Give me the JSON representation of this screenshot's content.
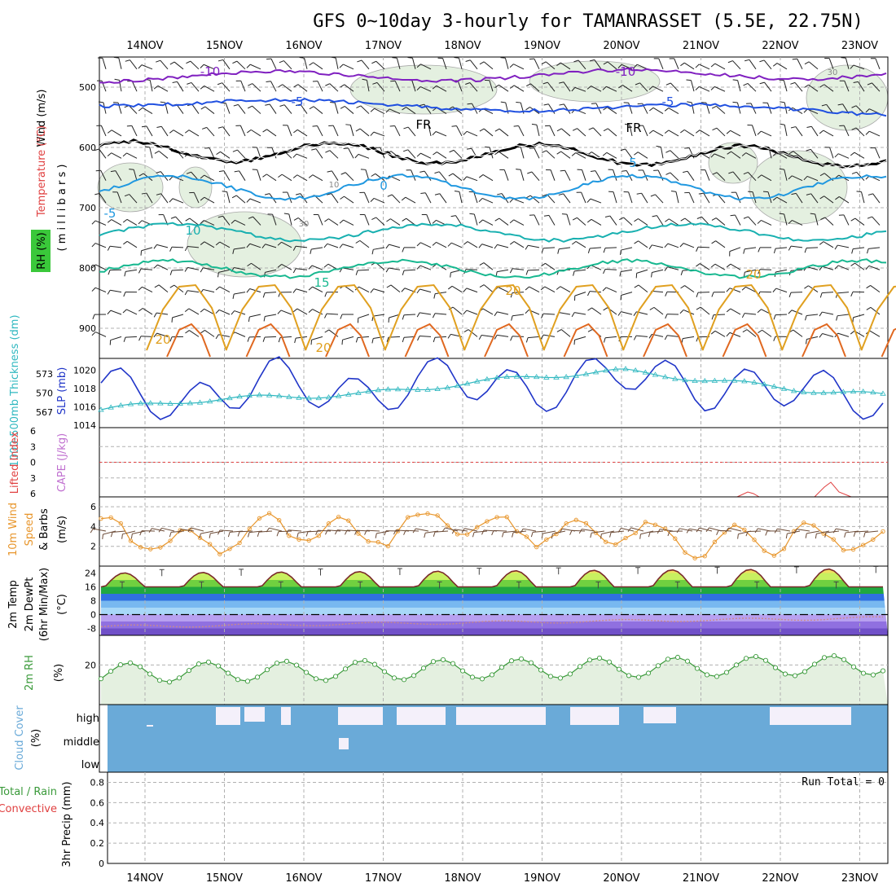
{
  "title": "GFS 0~10day 3-hourly for TAMANRASSET (5.5E, 22.75N)",
  "dates": [
    "14NOV",
    "15NOV",
    "16NOV",
    "17NOV",
    "18NOV",
    "19NOV",
    "20NOV",
    "21NOV",
    "22NOV",
    "23NOV"
  ],
  "panels": {
    "upper": {
      "ylabel": "(millibars)",
      "ylabel_spaced": "( m i l l i b a r s )",
      "ticks": [
        "500",
        "600",
        "700",
        "800",
        "900"
      ],
      "legend_wind": "Wind (m/s)",
      "legend_temp": "Temperature (°C)",
      "legend_rh": "RH (%)",
      "isotherm_labels": [
        "-10",
        "-10",
        "-5",
        "-5",
        "FR",
        "FR",
        "0",
        "5",
        "-5",
        "10",
        "15",
        "20",
        "20",
        "20",
        "20",
        "10",
        "30",
        "30"
      ]
    },
    "slp": {
      "label_left": "1000-500mb Thickness (dm)",
      "label_right": "SLP (mb)",
      "ticks_thk": [
        "573",
        "570",
        "567"
      ],
      "ticks_slp": [
        "1020",
        "1018",
        "1016",
        "1014"
      ]
    },
    "cape": {
      "label_left": "Lifted Index",
      "label_right": "CAPE (J/kg)",
      "ticks": [
        "6",
        "3",
        "0",
        "3",
        "6"
      ]
    },
    "wind10": {
      "label_a": "10m Wind",
      "label_b": "Speed",
      "label_c": "& Barbs",
      "unit": "(m/s)",
      "ticks": [
        "6",
        "4",
        "2"
      ]
    },
    "temp2m": {
      "label_a": "2m Temp",
      "label_b": "2m DewPt",
      "label_c": "(6hr Min/Max)",
      "unit": "(°C)",
      "ticks": [
        "24",
        "16",
        "8",
        "0",
        "-8"
      ]
    },
    "rh2m": {
      "label": "2m RH",
      "unit": "(%)",
      "ticks": [
        "20"
      ]
    },
    "cloud": {
      "label": "Cloud Cover",
      "unit": "(%)",
      "levels": [
        "high",
        "middle",
        "low"
      ]
    },
    "precip": {
      "label_a": "Total / Rain",
      "label_b": "Convective",
      "label_c": "3hr Precip (mm)",
      "ticks": [
        "0.8",
        "0.6",
        "0.4",
        "0.2",
        "0"
      ],
      "run_total": "Run Total = 0"
    }
  },
  "colors": {
    "slp": "#2035c8",
    "thickness": "#30b8c0",
    "wind_speed": "#e8962c",
    "barb": "#6b4a36",
    "rh_fill": "#e4f0e0",
    "rh_line": "#3a9a3a",
    "cloud": "#6aaad8",
    "temp_line": "#7a2a2a",
    "dewpt": "#c98a8a",
    "grid": "#b0b0b0"
  },
  "chart_data": [
    {
      "type": "line",
      "title": "SLP (mb)",
      "x": [
        "14NOV",
        "15NOV",
        "16NOV",
        "17NOV",
        "18NOV",
        "19NOV",
        "20NOV",
        "21NOV",
        "22NOV",
        "23NOV"
      ],
      "series": [
        {
          "name": "SLP (mb)",
          "values": [
            1018.6,
            1016.0,
            1019.4,
            1016.8,
            1019.6,
            1017.2,
            1020.2,
            1017.6,
            1018.4,
            1016.4
          ]
        },
        {
          "name": "1000-500mb Thickness (dm)",
          "values": [
            567.4,
            568.8,
            569.4,
            569.8,
            571.2,
            572.6,
            573.4,
            572.0,
            570.6,
            569.6
          ]
        }
      ],
      "ylim": [
        1014,
        1021
      ]
    },
    {
      "type": "line",
      "title": "10m Wind Speed (m/s)",
      "x": [
        "14NOV",
        "15NOV",
        "16NOV",
        "17NOV",
        "18NOV",
        "19NOV",
        "20NOV",
        "21NOV",
        "22NOV",
        "23NOV"
      ],
      "series": [
        {
          "name": "Speed",
          "values": [
            3.5,
            2.2,
            4.0,
            3.2,
            4.6,
            3.4,
            3.6,
            2.2,
            3.0,
            2.5
          ]
        }
      ],
      "ylim": [
        0,
        7
      ]
    },
    {
      "type": "area",
      "title": "2m Temp (°C)",
      "x": [
        "14NOV",
        "15NOV",
        "16NOV",
        "17NOV",
        "18NOV",
        "19NOV",
        "20NOV",
        "21NOV",
        "22NOV",
        "23NOV"
      ],
      "series": [
        {
          "name": "2m Temp",
          "values": [
            15,
            24,
            24,
            24,
            24,
            24,
            24,
            24,
            26,
            26
          ]
        },
        {
          "name": "2m DewPt",
          "values": [
            -7,
            -7,
            -6,
            -5,
            -5,
            -6,
            -5,
            -4,
            -3,
            -2
          ]
        }
      ],
      "ylim": [
        -12,
        28
      ]
    },
    {
      "type": "line",
      "title": "2m RH (%)",
      "x": [
        "14NOV",
        "15NOV",
        "16NOV",
        "17NOV",
        "18NOV",
        "19NOV",
        "20NOV",
        "21NOV",
        "22NOV",
        "23NOV"
      ],
      "series": [
        {
          "name": "2m RH",
          "values": [
            24,
            19,
            20,
            22,
            23,
            24,
            24,
            24,
            26,
            30
          ]
        }
      ],
      "ylim": [
        0,
        35
      ]
    },
    {
      "type": "bar",
      "title": "3hr Precip (mm)",
      "categories": [
        "14NOV",
        "15NOV",
        "16NOV",
        "17NOV",
        "18NOV",
        "19NOV",
        "20NOV",
        "21NOV",
        "22NOV",
        "23NOV"
      ],
      "values": [
        0,
        0,
        0,
        0,
        0,
        0,
        0,
        0,
        0,
        0
      ],
      "ylim": [
        0,
        0.9
      ]
    }
  ]
}
